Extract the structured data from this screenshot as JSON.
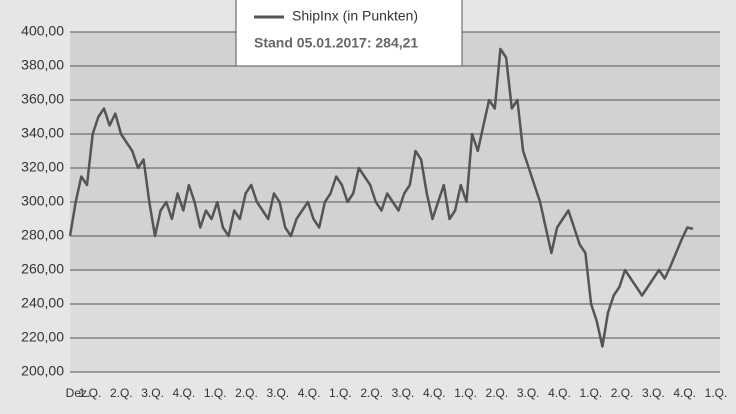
{
  "chart_data": {
    "type": "line",
    "annotation": "Stand 05.01.2017: 284,21",
    "x_labels": [
      "Dez.",
      "1.Q.",
      "2.Q.",
      "3.Q.",
      "4.Q.",
      "1.Q.",
      "2.Q.",
      "3.Q.",
      "4.Q.",
      "1.Q.",
      "2.Q.",
      "3.Q.",
      "4.Q.",
      "1.Q.",
      "2.Q.",
      "3.Q.",
      "4.Q.",
      "1.Q.",
      "2.Q.",
      "3.Q.",
      "4.Q.",
      "1.Q."
    ],
    "series": [
      {
        "name": "ShipInx (in Punkten)",
        "color": "#555555",
        "values": [
          280,
          300,
          315,
          310,
          340,
          350,
          355,
          345,
          352,
          340,
          335,
          330,
          320,
          325,
          300,
          280,
          295,
          300,
          290,
          305,
          295,
          310,
          300,
          285,
          295,
          290,
          300,
          285,
          280,
          295,
          290,
          305,
          310,
          300,
          295,
          290,
          305,
          300,
          285,
          280,
          290,
          295,
          300,
          290,
          285,
          300,
          305,
          315,
          310,
          300,
          305,
          320,
          315,
          310,
          300,
          295,
          305,
          300,
          295,
          305,
          310,
          330,
          325,
          305,
          290,
          300,
          310,
          290,
          295,
          310,
          300,
          340,
          330,
          345,
          360,
          355,
          390,
          385,
          355,
          360,
          330,
          320,
          310,
          300,
          285,
          270,
          285,
          290,
          295,
          285,
          275,
          270,
          240,
          230,
          215,
          235,
          245,
          250,
          260,
          255,
          250,
          245,
          250,
          255,
          260,
          255,
          262,
          270,
          278,
          285,
          284.21
        ]
      }
    ],
    "ylim": [
      200,
      400
    ],
    "yticks": [
      {
        "value": 200,
        "label": "200,00"
      },
      {
        "value": 220,
        "label": "220,00"
      },
      {
        "value": 240,
        "label": "240,00"
      },
      {
        "value": 260,
        "label": "260,00"
      },
      {
        "value": 280,
        "label": "280,00"
      },
      {
        "value": 300,
        "label": "300,00"
      },
      {
        "value": 320,
        "label": "320,00"
      },
      {
        "value": 340,
        "label": "340,00"
      },
      {
        "value": 360,
        "label": "360,00"
      },
      {
        "value": 380,
        "label": "380,00"
      },
      {
        "value": 400,
        "label": "400,00"
      }
    ],
    "grid": true
  }
}
